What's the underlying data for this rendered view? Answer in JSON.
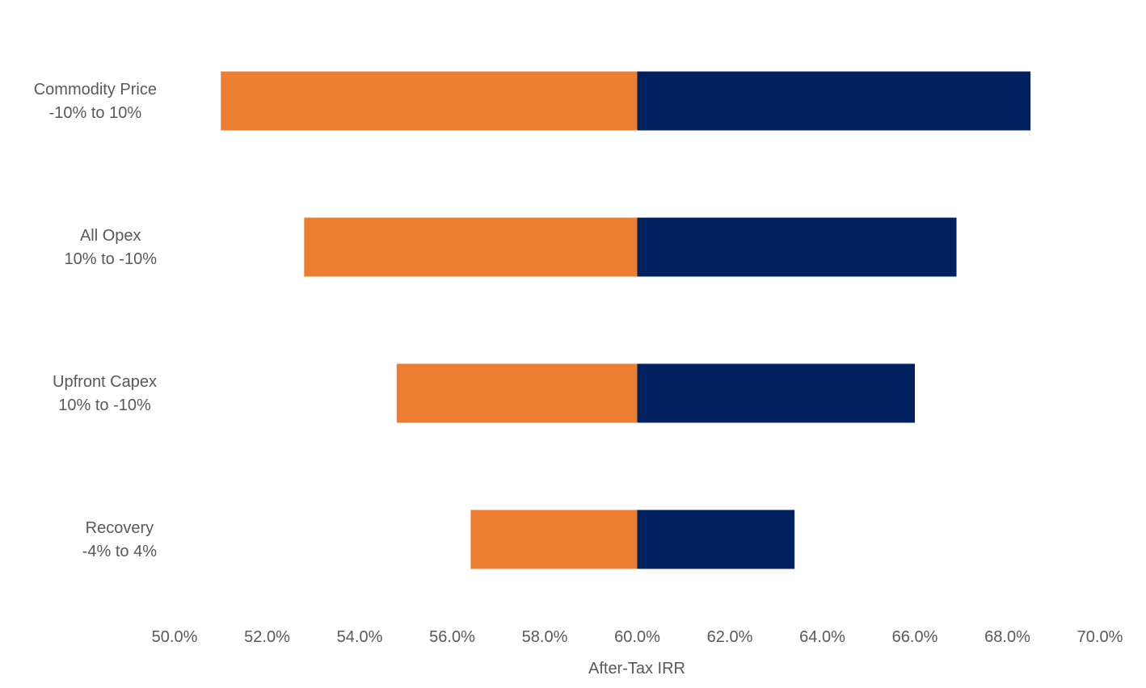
{
  "chart_data": {
    "type": "bar",
    "orientation": "horizontal",
    "subtype": "tornado",
    "base_value": 60.0,
    "categories": [
      {
        "line1": "Commodity Price",
        "line2": "-10% to 10%"
      },
      {
        "line1": "All Opex",
        "line2": "10% to -10%"
      },
      {
        "line1": "Upfront Capex",
        "line2": "10% to -10%"
      },
      {
        "line1": "Recovery",
        "line2": "-4% to 4%"
      }
    ],
    "series": [
      {
        "color": "#ED7D31",
        "low": [
          51.0,
          52.8,
          54.8,
          56.4
        ]
      },
      {
        "color": "#002060",
        "high": [
          68.5,
          66.9,
          66.0,
          63.4
        ]
      }
    ],
    "xlim": [
      50.0,
      70.0
    ],
    "xticks": [
      "50.0%",
      "52.0%",
      "54.0%",
      "56.0%",
      "58.0%",
      "60.0%",
      "62.0%",
      "64.0%",
      "66.0%",
      "68.0%",
      "70.0%"
    ],
    "xlabel": "After-Tax IRR",
    "grid": false,
    "legend": "none"
  }
}
